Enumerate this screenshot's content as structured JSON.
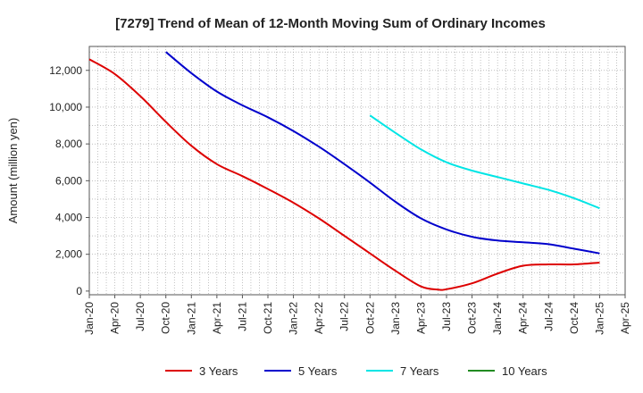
{
  "chart_data": {
    "type": "line",
    "title": "[7279]  Trend of Mean of 12-Month Moving Sum of Ordinary Incomes",
    "xlabel": "",
    "ylabel": "Amount (million yen)",
    "ylim": [
      -200,
      13300
    ],
    "yticks": [
      0,
      2000,
      4000,
      6000,
      8000,
      10000,
      12000
    ],
    "ytick_labels": [
      "0",
      "2,000",
      "4,000",
      "6,000",
      "8,000",
      "10,000",
      "12,000"
    ],
    "xticks": [
      "Jan-20",
      "Apr-20",
      "Jul-20",
      "Oct-20",
      "Jan-21",
      "Apr-21",
      "Jul-21",
      "Oct-21",
      "Jan-22",
      "Apr-22",
      "Jul-22",
      "Oct-22",
      "Jan-23",
      "Apr-23",
      "Jul-23",
      "Oct-23",
      "Jan-24",
      "Apr-24",
      "Jul-24",
      "Oct-24",
      "Jan-25",
      "Apr-25"
    ],
    "x_units": "months since Jan-20",
    "grid": true,
    "legend_position": "bottom",
    "series": [
      {
        "name": "3 Years",
        "color": "#dd0000",
        "x": [
          0,
          3,
          6,
          9,
          12,
          15,
          18,
          21,
          24,
          27,
          30,
          33,
          36,
          39,
          41,
          42,
          45,
          48,
          51,
          54,
          57,
          60
        ],
        "values": [
          12600,
          11800,
          10600,
          9200,
          7900,
          6900,
          6250,
          5550,
          4800,
          3950,
          3000,
          2050,
          1100,
          250,
          80,
          100,
          420,
          950,
          1380,
          1450,
          1450,
          1550
        ]
      },
      {
        "name": "5 Years",
        "color": "#0000cc",
        "x": [
          9,
          12,
          15,
          18,
          21,
          24,
          27,
          30,
          33,
          36,
          39,
          42,
          45,
          48,
          51,
          54,
          57,
          60
        ],
        "values": [
          13000,
          11850,
          10850,
          10100,
          9450,
          8700,
          7850,
          6900,
          5900,
          4850,
          3950,
          3350,
          2950,
          2750,
          2650,
          2550,
          2300,
          2050
        ]
      },
      {
        "name": "7 Years",
        "color": "#00e5e5",
        "x": [
          33,
          36,
          39,
          42,
          45,
          48,
          51,
          54,
          57,
          60
        ],
        "values": [
          9550,
          8600,
          7700,
          7000,
          6550,
          6200,
          5850,
          5500,
          5050,
          4500
        ]
      },
      {
        "name": "10 Years",
        "color": "#228b22",
        "x": [],
        "values": []
      }
    ]
  }
}
